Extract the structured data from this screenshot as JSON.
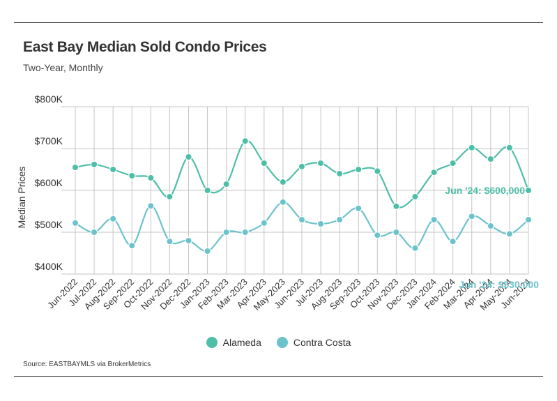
{
  "header": {
    "title": "East Bay Median Sold Condo Prices",
    "subtitle": "Two-Year, Monthly"
  },
  "footer": {
    "source": "Source:  EASTBAYMLS via BrokerMetrics"
  },
  "colors": {
    "alameda": "#4dbea8",
    "contra_costa": "#6cc3cb",
    "grid": "#bfbfbf",
    "text": "#333333"
  },
  "chart_data": {
    "type": "line",
    "title": "East Bay Median Sold Condo Prices",
    "subtitle": "Two-Year, Monthly",
    "ylabel": "Median Prices",
    "xlabel": "",
    "ylim": [
      400000,
      800000
    ],
    "yticks": [
      400000,
      500000,
      600000,
      700000,
      800000
    ],
    "ytick_labels": [
      "$400K",
      "$500K",
      "$600K",
      "$700K",
      "$800K"
    ],
    "grid": true,
    "legend_position": "bottom-center",
    "categories": [
      "Jun-2022",
      "Jul-2022",
      "Aug-2022",
      "Sep-2022",
      "Oct-2022",
      "Nov-2022",
      "Dec-2022",
      "Jan-2023",
      "Feb-2023",
      "Mar-2023",
      "Apr-2023",
      "May-2023",
      "Jun-2023",
      "Jul-2023",
      "Aug-2023",
      "Sep-2023",
      "Oct-2023",
      "Nov-2023",
      "Dec-2023",
      "Jan-2024",
      "Feb-2024",
      "Mar-2024",
      "Apr-2024",
      "May-2024",
      "Jun-2024"
    ],
    "series": [
      {
        "name": "Alameda",
        "color": "#4dbea8",
        "values": [
          655000,
          662000,
          650000,
          635000,
          630000,
          585000,
          680000,
          600000,
          615000,
          718000,
          665000,
          620000,
          657000,
          665000,
          640000,
          650000,
          646000,
          562000,
          585000,
          643000,
          665000,
          702000,
          675000,
          702000,
          600000
        ],
        "end_label": "Jun '24: $600,000"
      },
      {
        "name": "Contra Costa",
        "color": "#6cc3cb",
        "values": [
          522000,
          500000,
          532000,
          468000,
          563000,
          478000,
          480000,
          455000,
          500000,
          500000,
          522000,
          572000,
          530000,
          520000,
          530000,
          557000,
          493000,
          500000,
          462000,
          530000,
          478000,
          538000,
          515000,
          496000,
          530000
        ],
        "end_label": "Jun '24: $530,000"
      }
    ]
  }
}
